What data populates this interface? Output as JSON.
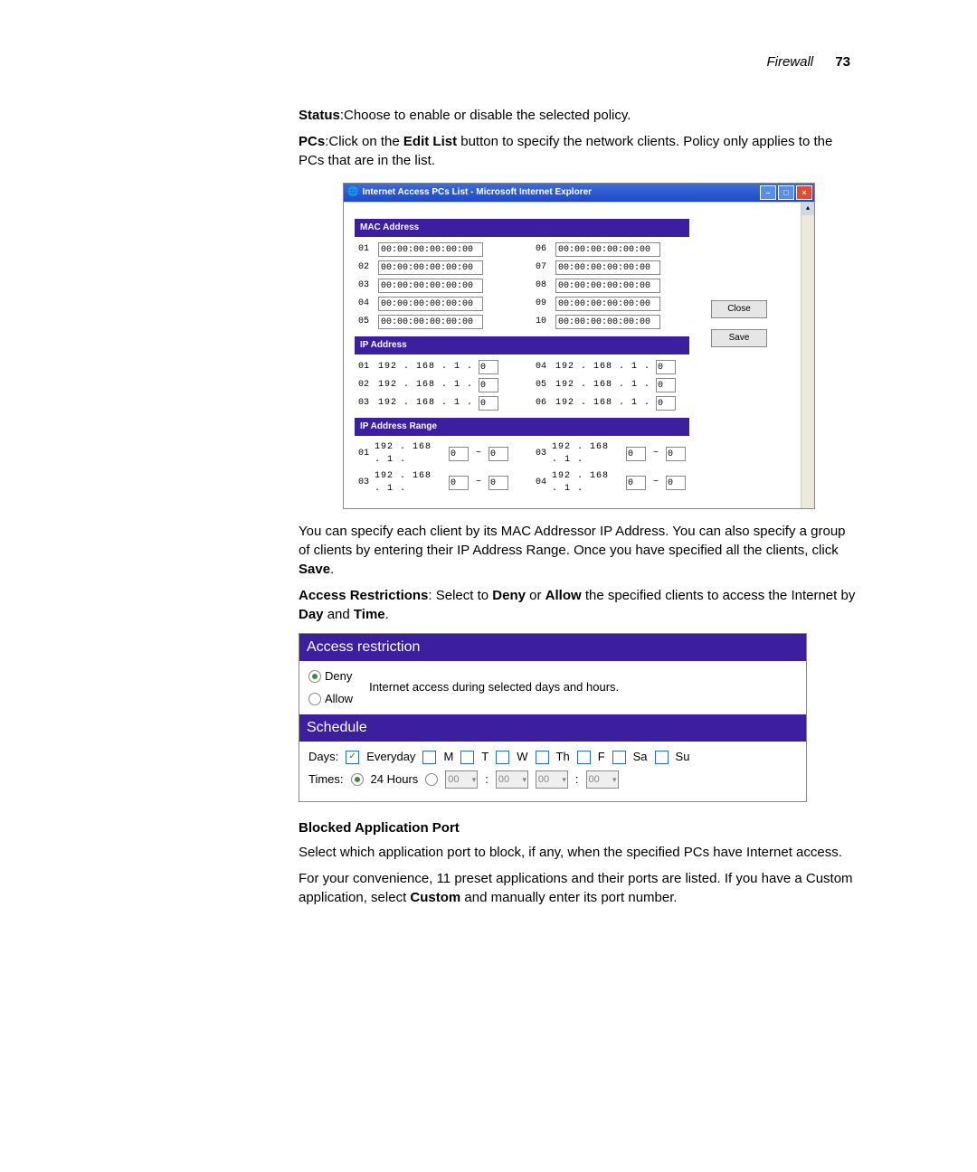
{
  "header": {
    "section": "Firewall",
    "page": "73"
  },
  "para_status_label": "Status",
  "para_status_text": ":Choose to enable or disable the selected policy.",
  "para_pcs_label": "PCs",
  "para_pcs_text_a": ":Click on the ",
  "para_pcs_bold": "Edit List",
  "para_pcs_text_b": " button to specify the network clients. Policy only applies to the PCs that are in the list.",
  "window": {
    "title": "Internet Access PCs List - Microsoft Internet Explorer",
    "close_label": "Close",
    "save_label": "Save",
    "section_mac": "MAC Address",
    "section_ip": "IP Address",
    "section_range": "IP Address Range",
    "mac": {
      "r1n": "01",
      "r1v": "00:00:00:00:00:00",
      "r6n": "06",
      "r6v": "00:00:00:00:00:00",
      "r2n": "02",
      "r2v": "00:00:00:00:00:00",
      "r7n": "07",
      "r7v": "00:00:00:00:00:00",
      "r3n": "03",
      "r3v": "00:00:00:00:00:00",
      "r8n": "08",
      "r8v": "00:00:00:00:00:00",
      "r4n": "04",
      "r4v": "00:00:00:00:00:00",
      "r9n": "09",
      "r9v": "00:00:00:00:00:00",
      "r5n": "05",
      "r5v": "00:00:00:00:00:00",
      "r10n": "10",
      "r10v": "00:00:00:00:00:00"
    },
    "ip": {
      "prefix": "192 . 168 . 1 .",
      "r1n": "01",
      "r1v": "0",
      "r4n": "04",
      "r4v": "0",
      "r2n": "02",
      "r2v": "0",
      "r5n": "05",
      "r5v": "0",
      "r3n": "03",
      "r3v": "0",
      "r6n": "06",
      "r6v": "0"
    },
    "range": {
      "prefix": "192 . 168 . 1 .",
      "r1n": "01",
      "r1a": "0",
      "r1b": "0",
      "r3n": "03",
      "r3a": "0",
      "r3b": "0",
      "r2n": "03",
      "r2a": "0",
      "r2b": "0",
      "r4n": "04",
      "r4a": "0",
      "r4b": "0"
    }
  },
  "para_after1_a": "You can specify each client by its MAC Addressor IP Address. You can also specify a group of clients by entering their IP Address Range. Once you have specified all the clients, click ",
  "para_after1_b": "Save",
  "para_after1_c": ".",
  "para_ar_label": "Access Restrictions",
  "para_ar_a": ": Select to ",
  "para_ar_deny": "Deny",
  "para_ar_b": " or ",
  "para_ar_allow": "Allow",
  "para_ar_c": " the specified clients to access the Internet by ",
  "para_ar_day": "Day",
  "para_ar_d": " and ",
  "para_ar_time": "Time",
  "para_ar_e": ".",
  "panel2": {
    "title1": "Access restriction",
    "deny": "Deny",
    "allow": "Allow",
    "desc": "Internet access during selected days and hours.",
    "title2": "Schedule",
    "days_label": "Days:",
    "everyday": "Everyday",
    "m": "M",
    "t": "T",
    "w": "W",
    "th": "Th",
    "f": "F",
    "sa": "Sa",
    "su": "Su",
    "times_label": "Times:",
    "h24": "24 Hours",
    "t00": "00"
  },
  "subheading": "Blocked Application Port",
  "para_block1": "Select which application port to block, if any, when the specified PCs have Internet access.",
  "para_block2_a": "For your convenience, 11 preset applications and their ports are listed. If you have a Custom application, select ",
  "para_block2_b": "Custom",
  "para_block2_c": " and manually enter its port number."
}
